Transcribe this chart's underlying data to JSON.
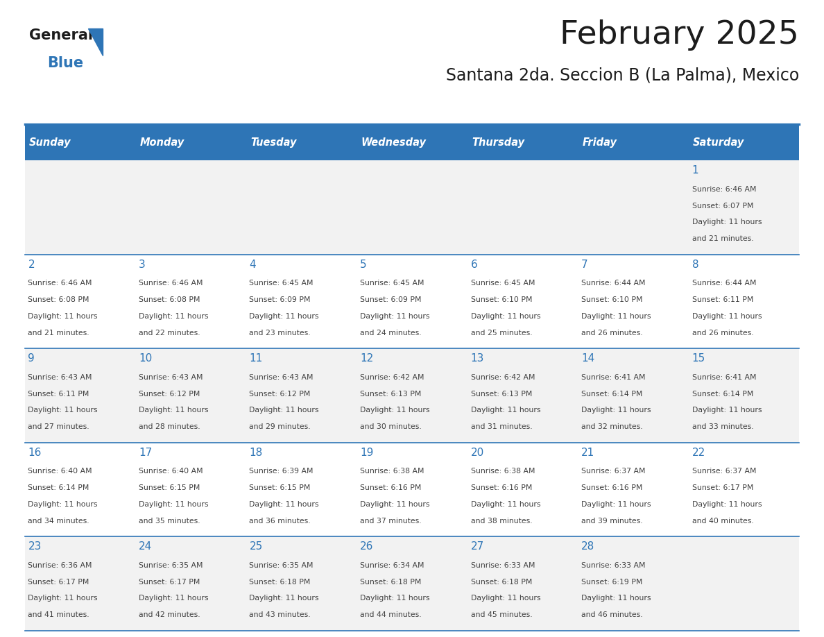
{
  "title": "February 2025",
  "subtitle": "Santana 2da. Seccion B (La Palma), Mexico",
  "header_bg": "#2E75B6",
  "header_text_color": "#FFFFFF",
  "day_names": [
    "Sunday",
    "Monday",
    "Tuesday",
    "Wednesday",
    "Thursday",
    "Friday",
    "Saturday"
  ],
  "bg_color": "#FFFFFF",
  "cell_bg_even": "#F2F2F2",
  "cell_bg_odd": "#FFFFFF",
  "border_color": "#2E75B6",
  "day_num_color": "#2E75B6",
  "text_color": "#404040",
  "calendar": [
    [
      null,
      null,
      null,
      null,
      null,
      null,
      1
    ],
    [
      2,
      3,
      4,
      5,
      6,
      7,
      8
    ],
    [
      9,
      10,
      11,
      12,
      13,
      14,
      15
    ],
    [
      16,
      17,
      18,
      19,
      20,
      21,
      22
    ],
    [
      23,
      24,
      25,
      26,
      27,
      28,
      null
    ]
  ],
  "sunrise": {
    "1": "6:46 AM",
    "2": "6:46 AM",
    "3": "6:46 AM",
    "4": "6:45 AM",
    "5": "6:45 AM",
    "6": "6:45 AM",
    "7": "6:44 AM",
    "8": "6:44 AM",
    "9": "6:43 AM",
    "10": "6:43 AM",
    "11": "6:43 AM",
    "12": "6:42 AM",
    "13": "6:42 AM",
    "14": "6:41 AM",
    "15": "6:41 AM",
    "16": "6:40 AM",
    "17": "6:40 AM",
    "18": "6:39 AM",
    "19": "6:38 AM",
    "20": "6:38 AM",
    "21": "6:37 AM",
    "22": "6:37 AM",
    "23": "6:36 AM",
    "24": "6:35 AM",
    "25": "6:35 AM",
    "26": "6:34 AM",
    "27": "6:33 AM",
    "28": "6:33 AM"
  },
  "sunset": {
    "1": "6:07 PM",
    "2": "6:08 PM",
    "3": "6:08 PM",
    "4": "6:09 PM",
    "5": "6:09 PM",
    "6": "6:10 PM",
    "7": "6:10 PM",
    "8": "6:11 PM",
    "9": "6:11 PM",
    "10": "6:12 PM",
    "11": "6:12 PM",
    "12": "6:13 PM",
    "13": "6:13 PM",
    "14": "6:14 PM",
    "15": "6:14 PM",
    "16": "6:14 PM",
    "17": "6:15 PM",
    "18": "6:15 PM",
    "19": "6:16 PM",
    "20": "6:16 PM",
    "21": "6:16 PM",
    "22": "6:17 PM",
    "23": "6:17 PM",
    "24": "6:17 PM",
    "25": "6:18 PM",
    "26": "6:18 PM",
    "27": "6:18 PM",
    "28": "6:19 PM"
  },
  "daylight_minutes": {
    "1": 21,
    "2": 21,
    "3": 22,
    "4": 23,
    "5": 24,
    "6": 25,
    "7": 26,
    "8": 26,
    "9": 27,
    "10": 28,
    "11": 29,
    "12": 30,
    "13": 31,
    "14": 32,
    "15": 33,
    "16": 34,
    "17": 35,
    "18": 36,
    "19": 37,
    "20": 38,
    "21": 39,
    "22": 40,
    "23": 41,
    "24": 42,
    "25": 43,
    "26": 44,
    "27": 45,
    "28": 46
  }
}
